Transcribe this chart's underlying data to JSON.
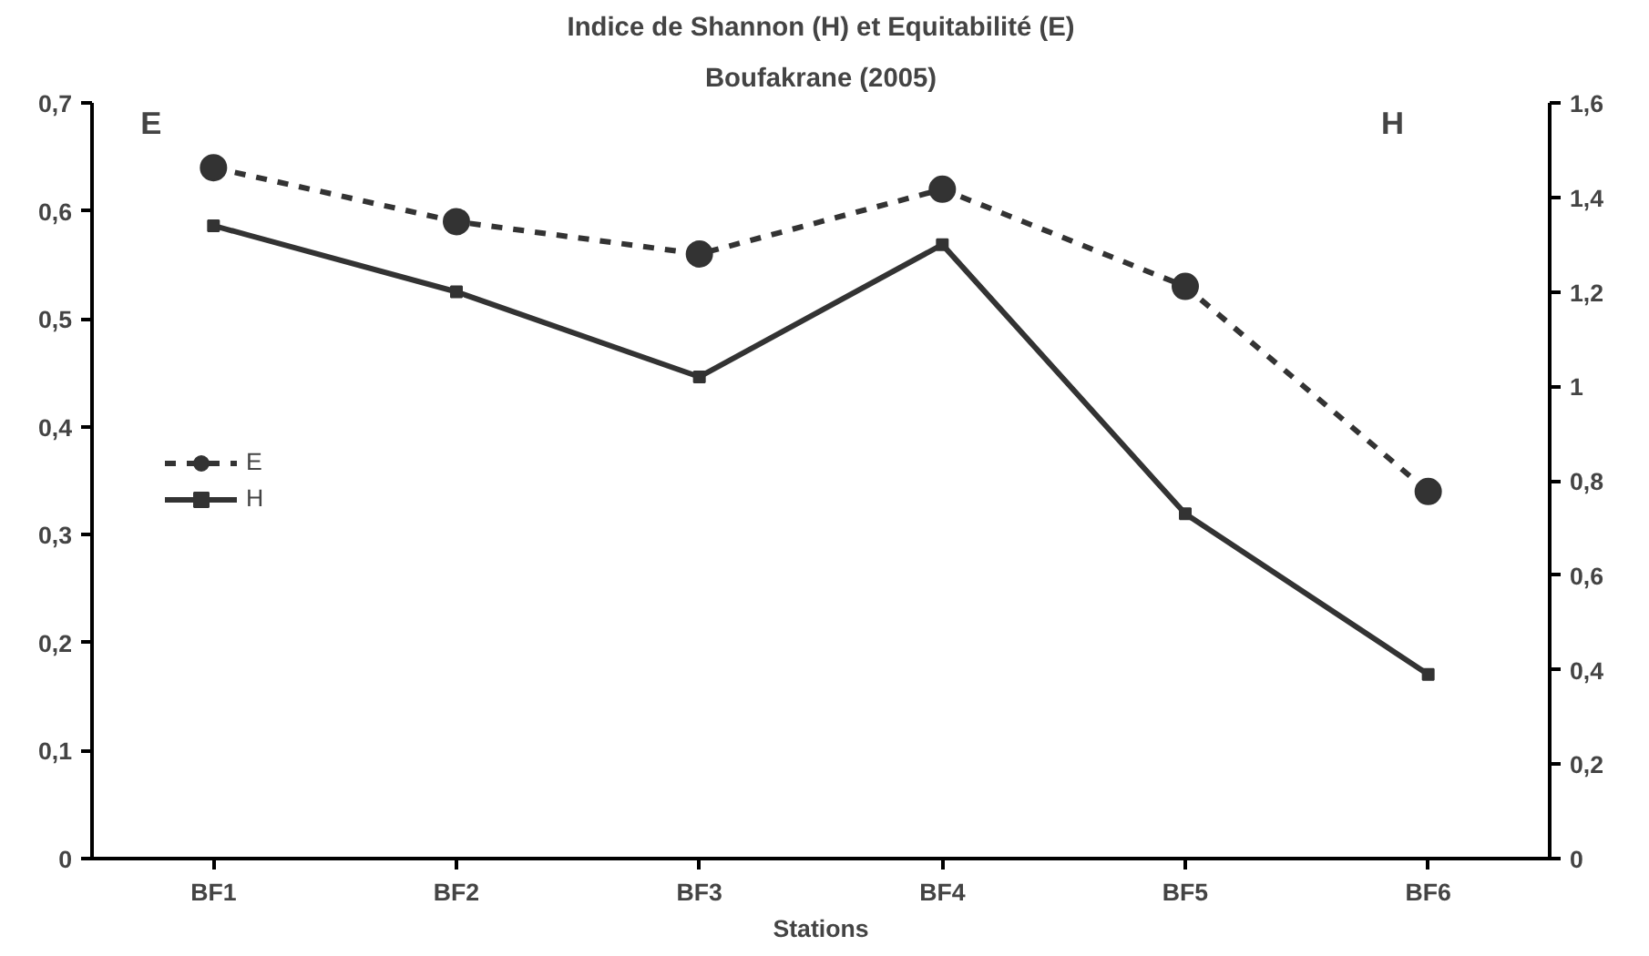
{
  "chart_data": {
    "type": "line",
    "title": "Indice de Shannon (H) et Equitabilité (E)",
    "subtitle": "Boufakrane (2005)",
    "xlabel": "Stations",
    "categories": [
      "BF1",
      "BF2",
      "BF3",
      "BF4",
      "BF5",
      "BF6"
    ],
    "series": [
      {
        "name": "E",
        "color": "#333333",
        "values": [
          0.64,
          0.59,
          0.56,
          0.62,
          0.53,
          0.34
        ],
        "marker": "circle",
        "line_style": "dashed"
      },
      {
        "name": "H",
        "color": "#333333",
        "values": [
          1.34,
          1.2,
          1.02,
          1.3,
          0.73,
          0.39
        ],
        "marker": "square",
        "line_style": "solid",
        "axis": "y2"
      }
    ],
    "ylim": [
      0,
      0.7
    ],
    "yticks": [
      {
        "value": 0,
        "label": "0"
      },
      {
        "value": 0.1,
        "label": "0,1"
      },
      {
        "value": 0.2,
        "label": "0,2"
      },
      {
        "value": 0.3,
        "label": "0,3"
      },
      {
        "value": 0.4,
        "label": "0,4"
      },
      {
        "value": 0.5,
        "label": "0,5"
      },
      {
        "value": 0.6,
        "label": "0,6"
      },
      {
        "value": 0.7,
        "label": "0,7"
      }
    ],
    "y2lim": [
      0,
      1.6
    ],
    "y2ticks": [
      {
        "value": 0,
        "label": "0"
      },
      {
        "value": 0.2,
        "label": "0,2"
      },
      {
        "value": 0.4,
        "label": "0,4"
      },
      {
        "value": 0.6,
        "label": "0,6"
      },
      {
        "value": 0.8,
        "label": "0,8"
      },
      {
        "value": 1,
        "label": "1"
      },
      {
        "value": 1.2,
        "label": "1,2"
      },
      {
        "value": 1.4,
        "label": "1,4"
      },
      {
        "value": 1.6,
        "label": "1,6"
      }
    ],
    "annotations": [
      "E",
      "H"
    ],
    "legend": "center left",
    "grid": false
  }
}
